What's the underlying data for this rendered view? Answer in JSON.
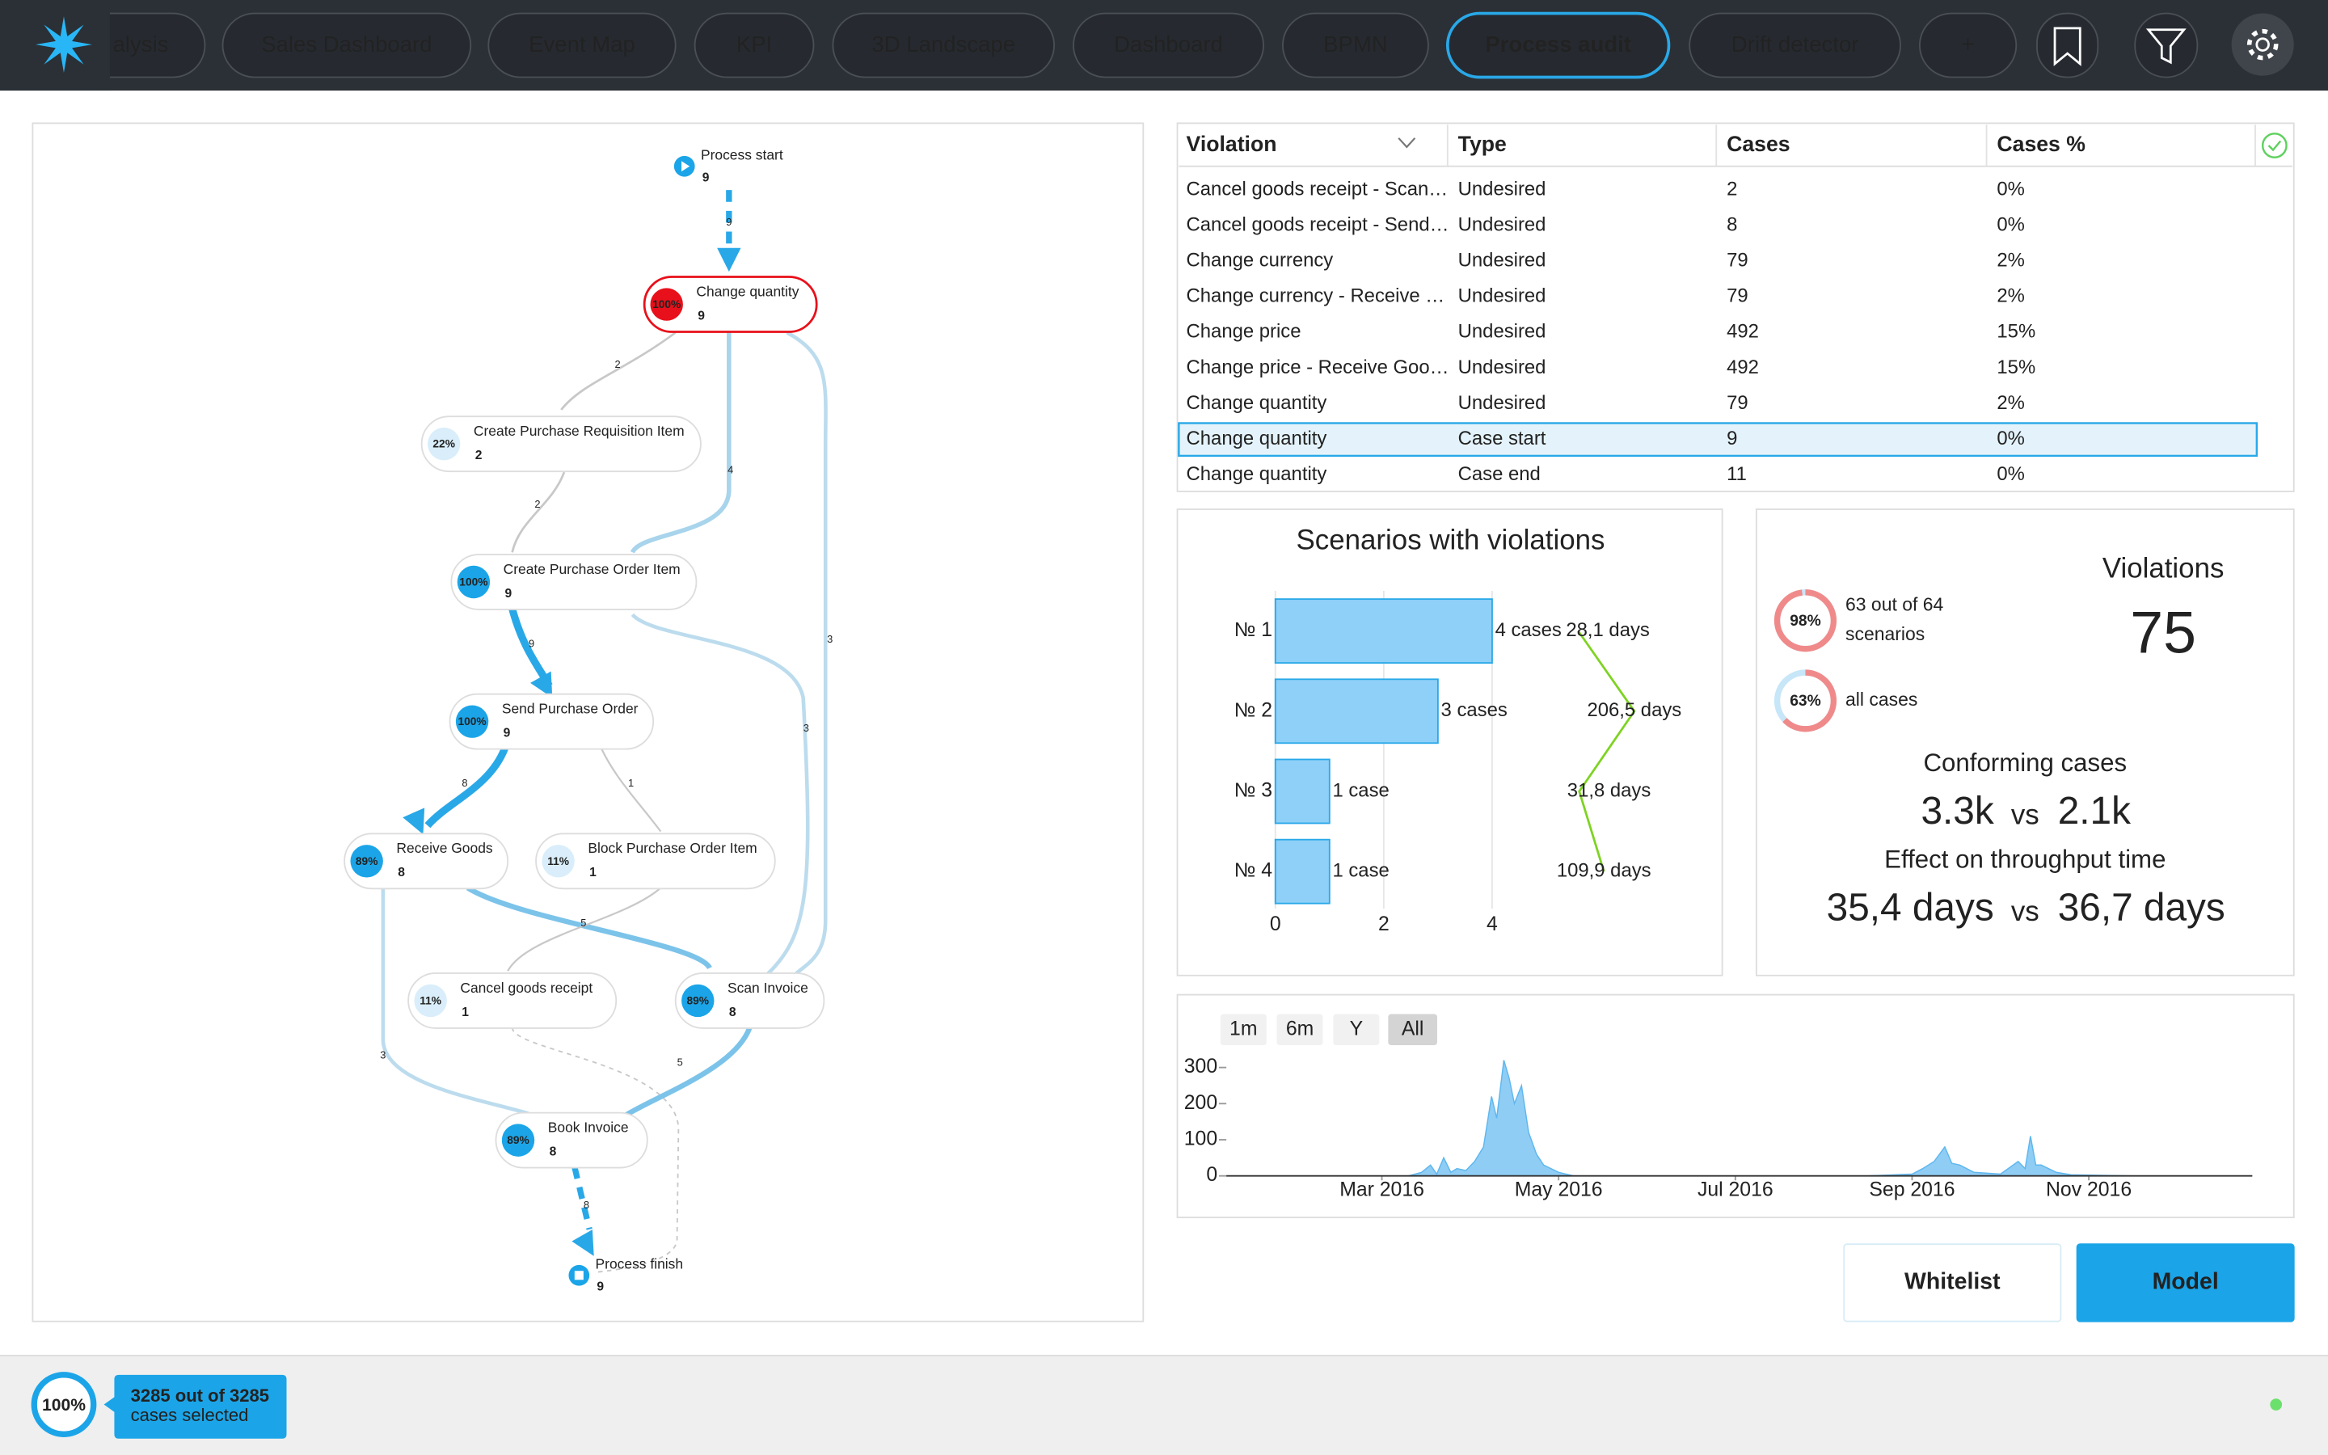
{
  "nav": {
    "tabs": [
      "alysis",
      "Sales Dashboard",
      "Event Map",
      "KPI",
      "3D Landscape",
      "Dashboard",
      "BPMN",
      "Process audit",
      "Drift detector",
      "+"
    ],
    "active_tab": 7
  },
  "process_map": {
    "start": {
      "label": "Process start",
      "count": 9
    },
    "finish": {
      "label": "Process finish",
      "count": 9
    },
    "nodes": [
      {
        "label": "Change quantity",
        "count": 9,
        "percent": "100%"
      },
      {
        "label": "Create Purchase Requisition Item",
        "count": 2,
        "percent": "22%"
      },
      {
        "label": "Create Purchase Order Item",
        "count": 9,
        "percent": "100%"
      },
      {
        "label": "Send Purchase Order",
        "count": 9,
        "percent": "100%"
      },
      {
        "label": "Receive Goods",
        "count": 8,
        "percent": "89%"
      },
      {
        "label": "Block Purchase Order Item",
        "count": 1,
        "percent": "11%"
      },
      {
        "label": "Cancel goods receipt",
        "count": 1,
        "percent": "11%"
      },
      {
        "label": "Scan Invoice",
        "count": 8,
        "percent": "89%"
      },
      {
        "label": "Book Invoice",
        "count": 8,
        "percent": "89%"
      }
    ],
    "edge_labels": [
      9,
      2,
      4,
      3,
      2,
      9,
      3,
      8,
      1,
      5,
      3,
      5,
      8
    ]
  },
  "violations_table": {
    "columns": [
      "Violation",
      "Type",
      "Cases",
      "Cases %"
    ],
    "rows": [
      [
        "Cancel goods receipt - Scan…",
        "Undesired",
        2,
        "0%"
      ],
      [
        "Cancel goods receipt - Send…",
        "Undesired",
        8,
        "0%"
      ],
      [
        "Change currency",
        "Undesired",
        79,
        "2%"
      ],
      [
        "Change currency - Receive …",
        "Undesired",
        79,
        "2%"
      ],
      [
        "Change price",
        "Undesired",
        492,
        "15%"
      ],
      [
        "Change price - Receive Goo…",
        "Undesired",
        492,
        "15%"
      ],
      [
        "Change quantity",
        "Undesired",
        79,
        "2%"
      ],
      [
        "Change quantity",
        "Case start",
        9,
        "0%"
      ],
      [
        "Change quantity",
        "Case end",
        11,
        "0%"
      ]
    ],
    "selected_row": 7
  },
  "scenarios_chart": {
    "type": "bar",
    "title": "Scenarios with violations",
    "categories": [
      "№ 1",
      "№ 2",
      "№ 3",
      "№ 4"
    ],
    "values": [
      4,
      3,
      1,
      1
    ],
    "value_labels": [
      "4 cases",
      "3 cases",
      "1 case",
      "1 case"
    ],
    "color": "#8fd0f8",
    "xlim": [
      0,
      4
    ],
    "xticks": [
      0,
      2,
      4
    ],
    "grid": true,
    "durations": {
      "values": [
        28.1,
        206.5,
        31.8,
        109.9
      ],
      "value_labels": [
        "28,1 days",
        "206,5 days",
        "31,8 days",
        "109,9 days"
      ],
      "color": "#7ed321",
      "x2lim": [
        0,
        250
      ]
    }
  },
  "violations_summary": {
    "title": "Violations",
    "total": 75,
    "donuts": [
      {
        "value": 98,
        "label": "98%",
        "text": [
          "63 out of 64",
          "scenarios"
        ]
      },
      {
        "value": 63,
        "label": "63%",
        "text": [
          "all cases"
        ]
      }
    ],
    "conforming": {
      "title": "Conforming cases",
      "left": "3.3k",
      "vs": "vs",
      "right": "2.1k"
    },
    "throughput": {
      "title": "Effect on throughput time",
      "left": "35,4 days",
      "vs": "vs",
      "right": "36,7 days"
    }
  },
  "timeline_chart": {
    "type": "area",
    "ranges": [
      "1m",
      "6m",
      "Y",
      "All"
    ],
    "active_range": 3,
    "x": [
      1.24,
      3.3,
      3.45,
      3.55,
      3.62,
      3.7,
      3.78,
      3.85,
      3.95,
      4.05,
      4.15,
      4.24,
      4.3,
      4.38,
      4.44,
      4.5,
      4.58,
      4.66,
      4.75,
      4.83,
      5.0,
      5.17,
      6.5,
      7.5,
      8.5,
      9.0,
      9.12,
      9.25,
      9.37,
      9.45,
      9.54,
      9.7,
      10.0,
      10.2,
      10.28,
      10.34,
      10.4,
      10.46,
      10.63,
      10.8,
      11.5,
      12.85
    ],
    "values": [
      0,
      0,
      10,
      30,
      5,
      50,
      10,
      20,
      15,
      40,
      80,
      220,
      160,
      320,
      270,
      200,
      250,
      120,
      60,
      30,
      10,
      0,
      0,
      0,
      0,
      5,
      20,
      40,
      80,
      35,
      30,
      10,
      5,
      40,
      20,
      110,
      30,
      30,
      10,
      3,
      0,
      0
    ],
    "xlim": [
      1.24,
      12.85
    ],
    "xticks": [
      {
        "value": 3,
        "label": "Mar 2016"
      },
      {
        "value": 5,
        "label": "May 2016"
      },
      {
        "value": 7,
        "label": "Jul 2016"
      },
      {
        "value": 9,
        "label": "Sep 2016"
      },
      {
        "value": 11,
        "label": "Nov 2016"
      }
    ],
    "ylim": [
      0,
      340
    ],
    "yticks": [
      0,
      100,
      200,
      300
    ],
    "color": "#8fcdf5"
  },
  "actions": {
    "buttons": [
      "Whitelist",
      "Model"
    ]
  },
  "footer": {
    "percent": "100%",
    "selection": [
      "3285 out of 3285",
      "cases selected"
    ]
  }
}
